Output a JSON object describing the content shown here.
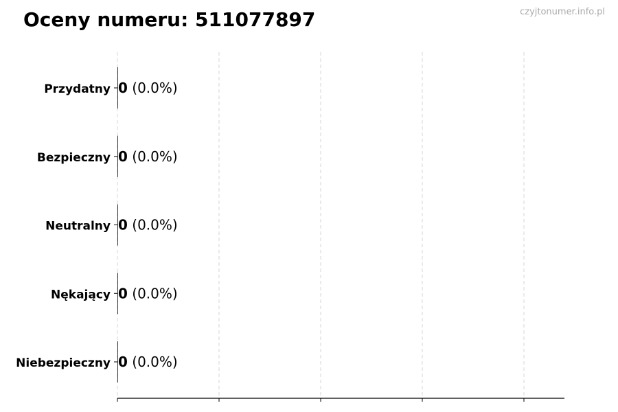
{
  "chart_data": {
    "type": "bar",
    "orientation": "horizontal",
    "title": "Oceny numeru: 511077897",
    "categories": [
      "Przydatny",
      "Bezpieczny",
      "Neutralny",
      "Nękający",
      "Niebezpieczny"
    ],
    "values": [
      0,
      0,
      0,
      0,
      0
    ],
    "data_labels": [
      {
        "count": "0",
        "percent": "(0.0%)"
      },
      {
        "count": "0",
        "percent": "(0.0%)"
      },
      {
        "count": "0",
        "percent": "(0.0%)"
      },
      {
        "count": "0",
        "percent": "(0.0%)"
      },
      {
        "count": "0",
        "percent": "(0.0%)"
      }
    ],
    "grid": "x dashed",
    "bar_color": "#333333",
    "xlabel": "",
    "ylabel": ""
  },
  "watermark": "czyjtonumer.info.pl"
}
